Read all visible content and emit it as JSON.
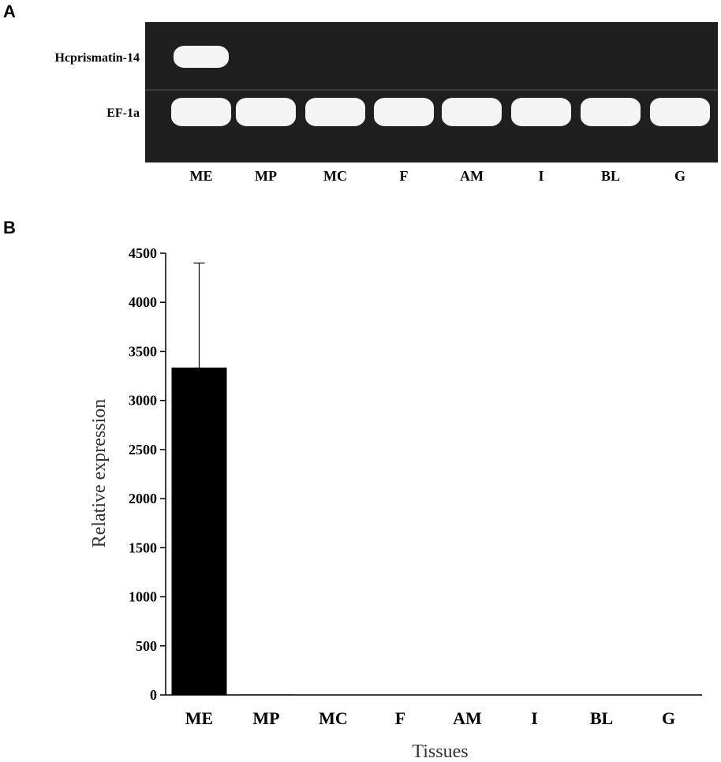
{
  "panel_a": {
    "letter": "A",
    "rows": [
      {
        "label": "Hcprismatin-14",
        "band_present": [
          true,
          false,
          false,
          false,
          false,
          false,
          false,
          false
        ]
      },
      {
        "label": "EF-1a",
        "band_present": [
          true,
          true,
          true,
          true,
          true,
          true,
          true,
          true
        ]
      }
    ],
    "lanes": [
      "ME",
      "MP",
      "MC",
      "F",
      "AM",
      "I",
      "BL",
      "G"
    ],
    "colors": {
      "gel": "#1f1f1f",
      "band": "#f4f4f4"
    }
  },
  "panel_b": {
    "letter": "B"
  },
  "chart_data": {
    "type": "bar",
    "categories": [
      "ME",
      "MP",
      "MC",
      "F",
      "AM",
      "I",
      "BL",
      "G"
    ],
    "values": [
      3335,
      5,
      3,
      2,
      3,
      2,
      1,
      1
    ],
    "error_upper": [
      1065,
      0,
      0,
      0,
      0,
      0,
      0,
      0
    ],
    "xlabel": "Tissues",
    "ylabel": "Relative expression",
    "ylim": [
      0,
      4500
    ],
    "yticks": [
      0,
      500,
      1000,
      1500,
      2000,
      2500,
      3000,
      3500,
      4000,
      4500
    ],
    "bar_color": "#000000",
    "grid": false,
    "legend": "none"
  }
}
